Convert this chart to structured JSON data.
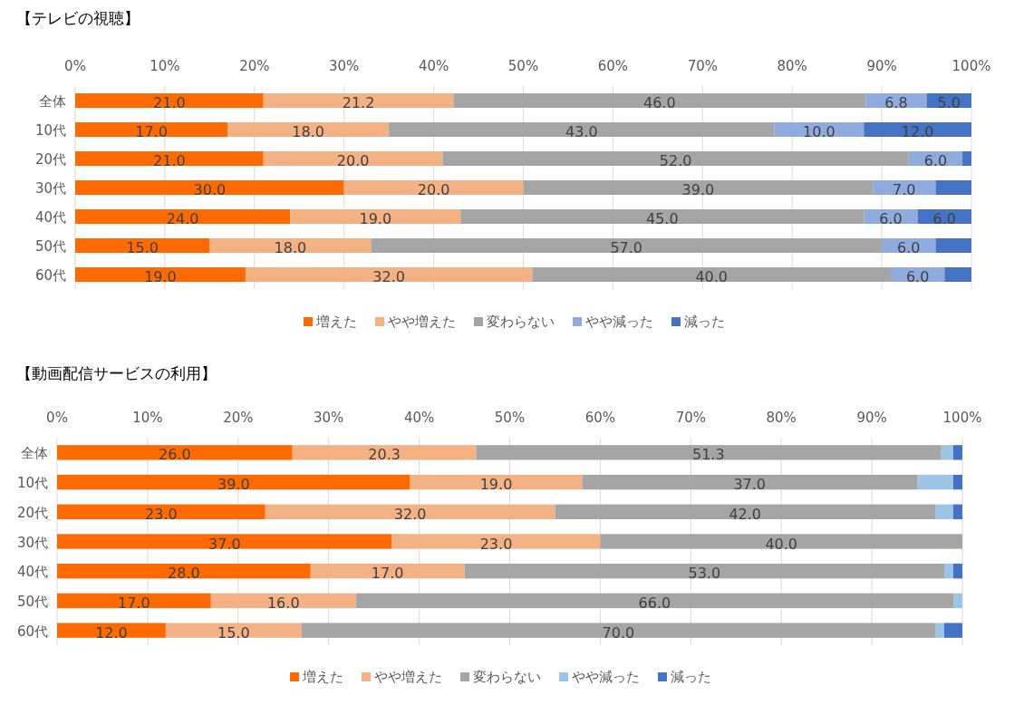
{
  "chart_data": [
    {
      "type": "bar",
      "orientation": "horizontal",
      "stacked": true,
      "title": "【テレビの視聴】",
      "categories": [
        "全体",
        "10代",
        "20代",
        "30代",
        "40代",
        "50代",
        "60代"
      ],
      "series": [
        {
          "name": "増えた",
          "color": "#ff6a00",
          "values": [
            21.0,
            17.0,
            21.0,
            30.0,
            24.0,
            15.0,
            19.0
          ],
          "value_labels": [
            "21.0",
            "17.0",
            "21.0",
            "30.0",
            "24.0",
            "15.0",
            "19.0"
          ]
        },
        {
          "name": "やや増えた",
          "color": "#f4b183",
          "values": [
            21.2,
            18.0,
            20.0,
            20.0,
            19.0,
            18.0,
            32.0
          ],
          "value_labels": [
            "21.2",
            "18.0",
            "20.0",
            "20.0",
            "19.0",
            "18.0",
            "32.0"
          ]
        },
        {
          "name": "変わらない",
          "color": "#a5a5a5",
          "values": [
            46.0,
            43.0,
            52.0,
            39.0,
            45.0,
            57.0,
            40.0
          ],
          "value_labels": [
            "46.0",
            "43.0",
            "52.0",
            "39.0",
            "45.0",
            "57.0",
            "40.0"
          ]
        },
        {
          "name": "やや減った",
          "color": "#8faadc",
          "values": [
            6.8,
            10.0,
            6.0,
            7.0,
            6.0,
            6.0,
            6.0
          ],
          "value_labels": [
            "6.8",
            "10.0",
            "6.0",
            "7.0",
            "6.0",
            "6.0",
            "6.0"
          ]
        },
        {
          "name": "減った",
          "color": "#4472c4",
          "values": [
            5.0,
            12.0,
            1,
            4,
            6.0,
            4,
            3
          ],
          "value_labels": [
            "5.0",
            "12.0",
            null,
            null,
            "6.0",
            null,
            null
          ]
        }
      ],
      "xlim": [
        0,
        100
      ],
      "xticks": [
        {
          "value": 0,
          "label": "0%"
        },
        {
          "value": 10,
          "label": "10%"
        },
        {
          "value": 20,
          "label": "20%"
        },
        {
          "value": 30,
          "label": "30%"
        },
        {
          "value": 40,
          "label": "40%"
        },
        {
          "value": 50,
          "label": "50%"
        },
        {
          "value": 60,
          "label": "60%"
        },
        {
          "value": 70,
          "label": "70%"
        },
        {
          "value": 80,
          "label": "80%"
        },
        {
          "value": 90,
          "label": "90%"
        },
        {
          "value": 100,
          "label": "100%"
        }
      ],
      "grid": "x",
      "legend": "bottom"
    },
    {
      "type": "bar",
      "orientation": "horizontal",
      "stacked": true,
      "title": "【動画配信サービスの利用】",
      "categories": [
        "全体",
        "10代",
        "20代",
        "30代",
        "40代",
        "50代",
        "60代"
      ],
      "series": [
        {
          "name": "増えた",
          "color": "#ff6a00",
          "values": [
            26.0,
            39.0,
            23.0,
            37.0,
            28.0,
            17.0,
            12.0
          ],
          "value_labels": [
            "26.0",
            "39.0",
            "23.0",
            "37.0",
            "28.0",
            "17.0",
            "12.0"
          ]
        },
        {
          "name": "やや増えた",
          "color": "#f4b183",
          "values": [
            20.3,
            19.0,
            32.0,
            23.0,
            17.0,
            16.0,
            15.0
          ],
          "value_labels": [
            "20.3",
            "19.0",
            "32.0",
            "23.0",
            "17.0",
            "16.0",
            "15.0"
          ]
        },
        {
          "name": "変わらない",
          "color": "#a5a5a5",
          "values": [
            51.3,
            37.0,
            42.0,
            40.0,
            53.0,
            66.0,
            70.0
          ],
          "value_labels": [
            "51.3",
            "37.0",
            "42.0",
            "40.0",
            "53.0",
            "66.0",
            "70.0"
          ]
        },
        {
          "name": "やや減った",
          "color": "#9dc3e6",
          "values": [
            1.4,
            4,
            2,
            0,
            1,
            1,
            1
          ],
          "value_labels": [
            null,
            null,
            null,
            null,
            null,
            null,
            null
          ]
        },
        {
          "name": "減った",
          "color": "#4472c4",
          "values": [
            1.0,
            1,
            1,
            0,
            1,
            0,
            2
          ],
          "value_labels": [
            null,
            null,
            null,
            null,
            null,
            null,
            null
          ]
        }
      ],
      "xlim": [
        0,
        100
      ],
      "xticks": [
        {
          "value": 0,
          "label": "0%"
        },
        {
          "value": 10,
          "label": "10%"
        },
        {
          "value": 20,
          "label": "20%"
        },
        {
          "value": 30,
          "label": "30%"
        },
        {
          "value": 40,
          "label": "40%"
        },
        {
          "value": 50,
          "label": "50%"
        },
        {
          "value": 60,
          "label": "60%"
        },
        {
          "value": 70,
          "label": "70%"
        },
        {
          "value": 80,
          "label": "80%"
        },
        {
          "value": 90,
          "label": "90%"
        },
        {
          "value": 100,
          "label": "100%"
        }
      ],
      "grid": "x",
      "legend": "bottom"
    }
  ]
}
